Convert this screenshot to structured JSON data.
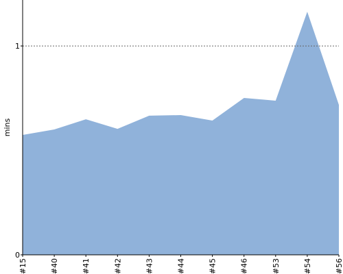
{
  "chart_data": {
    "type": "area",
    "y_label": "mins",
    "categories": [
      "#15",
      "#40",
      "#41",
      "#42",
      "#43",
      "#44",
      "#45",
      "#46",
      "#53",
      "#54",
      "#56"
    ],
    "values": [
      0.574,
      0.6,
      0.649,
      0.603,
      0.666,
      0.669,
      0.643,
      0.751,
      0.738,
      1.164,
      0.718
    ],
    "color": "#90b2da",
    "ylim": [
      0,
      1.22
    ],
    "yticks": [
      0,
      1
    ],
    "grid": true
  }
}
